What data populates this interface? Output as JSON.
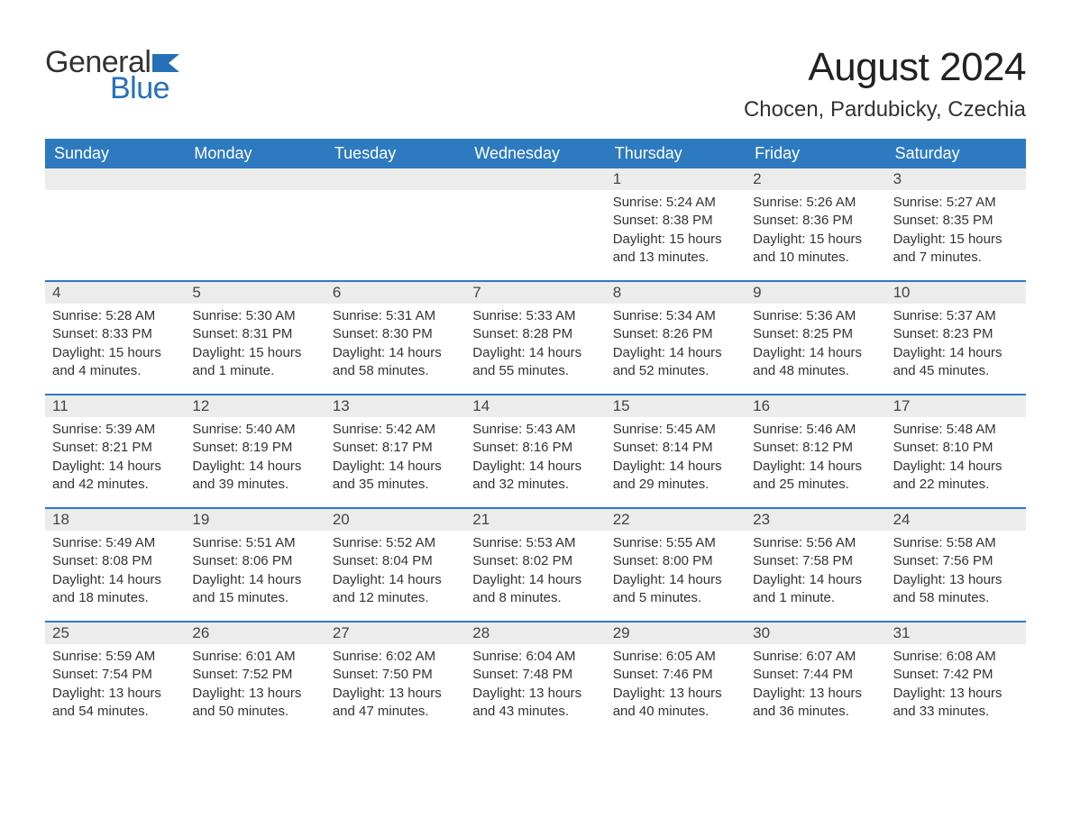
{
  "logo": {
    "text1": "General",
    "text2": "Blue"
  },
  "title": "August 2024",
  "location": "Chocen, Pardubicky, Czechia",
  "colors": {
    "header_bg": "#2d7ac0",
    "header_text": "#ffffff",
    "daynum_bg": "#ececec",
    "text": "#333333",
    "logo_blue": "#2471b8",
    "page_bg": "#ffffff",
    "week_border": "#2d7ac0"
  },
  "weekdays": [
    "Sunday",
    "Monday",
    "Tuesday",
    "Wednesday",
    "Thursday",
    "Friday",
    "Saturday"
  ],
  "weeks": [
    [
      null,
      null,
      null,
      null,
      {
        "n": "1",
        "sunrise": "Sunrise: 5:24 AM",
        "sunset": "Sunset: 8:38 PM",
        "daylight": "Daylight: 15 hours and 13 minutes."
      },
      {
        "n": "2",
        "sunrise": "Sunrise: 5:26 AM",
        "sunset": "Sunset: 8:36 PM",
        "daylight": "Daylight: 15 hours and 10 minutes."
      },
      {
        "n": "3",
        "sunrise": "Sunrise: 5:27 AM",
        "sunset": "Sunset: 8:35 PM",
        "daylight": "Daylight: 15 hours and 7 minutes."
      }
    ],
    [
      {
        "n": "4",
        "sunrise": "Sunrise: 5:28 AM",
        "sunset": "Sunset: 8:33 PM",
        "daylight": "Daylight: 15 hours and 4 minutes."
      },
      {
        "n": "5",
        "sunrise": "Sunrise: 5:30 AM",
        "sunset": "Sunset: 8:31 PM",
        "daylight": "Daylight: 15 hours and 1 minute."
      },
      {
        "n": "6",
        "sunrise": "Sunrise: 5:31 AM",
        "sunset": "Sunset: 8:30 PM",
        "daylight": "Daylight: 14 hours and 58 minutes."
      },
      {
        "n": "7",
        "sunrise": "Sunrise: 5:33 AM",
        "sunset": "Sunset: 8:28 PM",
        "daylight": "Daylight: 14 hours and 55 minutes."
      },
      {
        "n": "8",
        "sunrise": "Sunrise: 5:34 AM",
        "sunset": "Sunset: 8:26 PM",
        "daylight": "Daylight: 14 hours and 52 minutes."
      },
      {
        "n": "9",
        "sunrise": "Sunrise: 5:36 AM",
        "sunset": "Sunset: 8:25 PM",
        "daylight": "Daylight: 14 hours and 48 minutes."
      },
      {
        "n": "10",
        "sunrise": "Sunrise: 5:37 AM",
        "sunset": "Sunset: 8:23 PM",
        "daylight": "Daylight: 14 hours and 45 minutes."
      }
    ],
    [
      {
        "n": "11",
        "sunrise": "Sunrise: 5:39 AM",
        "sunset": "Sunset: 8:21 PM",
        "daylight": "Daylight: 14 hours and 42 minutes."
      },
      {
        "n": "12",
        "sunrise": "Sunrise: 5:40 AM",
        "sunset": "Sunset: 8:19 PM",
        "daylight": "Daylight: 14 hours and 39 minutes."
      },
      {
        "n": "13",
        "sunrise": "Sunrise: 5:42 AM",
        "sunset": "Sunset: 8:17 PM",
        "daylight": "Daylight: 14 hours and 35 minutes."
      },
      {
        "n": "14",
        "sunrise": "Sunrise: 5:43 AM",
        "sunset": "Sunset: 8:16 PM",
        "daylight": "Daylight: 14 hours and 32 minutes."
      },
      {
        "n": "15",
        "sunrise": "Sunrise: 5:45 AM",
        "sunset": "Sunset: 8:14 PM",
        "daylight": "Daylight: 14 hours and 29 minutes."
      },
      {
        "n": "16",
        "sunrise": "Sunrise: 5:46 AM",
        "sunset": "Sunset: 8:12 PM",
        "daylight": "Daylight: 14 hours and 25 minutes."
      },
      {
        "n": "17",
        "sunrise": "Sunrise: 5:48 AM",
        "sunset": "Sunset: 8:10 PM",
        "daylight": "Daylight: 14 hours and 22 minutes."
      }
    ],
    [
      {
        "n": "18",
        "sunrise": "Sunrise: 5:49 AM",
        "sunset": "Sunset: 8:08 PM",
        "daylight": "Daylight: 14 hours and 18 minutes."
      },
      {
        "n": "19",
        "sunrise": "Sunrise: 5:51 AM",
        "sunset": "Sunset: 8:06 PM",
        "daylight": "Daylight: 14 hours and 15 minutes."
      },
      {
        "n": "20",
        "sunrise": "Sunrise: 5:52 AM",
        "sunset": "Sunset: 8:04 PM",
        "daylight": "Daylight: 14 hours and 12 minutes."
      },
      {
        "n": "21",
        "sunrise": "Sunrise: 5:53 AM",
        "sunset": "Sunset: 8:02 PM",
        "daylight": "Daylight: 14 hours and 8 minutes."
      },
      {
        "n": "22",
        "sunrise": "Sunrise: 5:55 AM",
        "sunset": "Sunset: 8:00 PM",
        "daylight": "Daylight: 14 hours and 5 minutes."
      },
      {
        "n": "23",
        "sunrise": "Sunrise: 5:56 AM",
        "sunset": "Sunset: 7:58 PM",
        "daylight": "Daylight: 14 hours and 1 minute."
      },
      {
        "n": "24",
        "sunrise": "Sunrise: 5:58 AM",
        "sunset": "Sunset: 7:56 PM",
        "daylight": "Daylight: 13 hours and 58 minutes."
      }
    ],
    [
      {
        "n": "25",
        "sunrise": "Sunrise: 5:59 AM",
        "sunset": "Sunset: 7:54 PM",
        "daylight": "Daylight: 13 hours and 54 minutes."
      },
      {
        "n": "26",
        "sunrise": "Sunrise: 6:01 AM",
        "sunset": "Sunset: 7:52 PM",
        "daylight": "Daylight: 13 hours and 50 minutes."
      },
      {
        "n": "27",
        "sunrise": "Sunrise: 6:02 AM",
        "sunset": "Sunset: 7:50 PM",
        "daylight": "Daylight: 13 hours and 47 minutes."
      },
      {
        "n": "28",
        "sunrise": "Sunrise: 6:04 AM",
        "sunset": "Sunset: 7:48 PM",
        "daylight": "Daylight: 13 hours and 43 minutes."
      },
      {
        "n": "29",
        "sunrise": "Sunrise: 6:05 AM",
        "sunset": "Sunset: 7:46 PM",
        "daylight": "Daylight: 13 hours and 40 minutes."
      },
      {
        "n": "30",
        "sunrise": "Sunrise: 6:07 AM",
        "sunset": "Sunset: 7:44 PM",
        "daylight": "Daylight: 13 hours and 36 minutes."
      },
      {
        "n": "31",
        "sunrise": "Sunrise: 6:08 AM",
        "sunset": "Sunset: 7:42 PM",
        "daylight": "Daylight: 13 hours and 33 minutes."
      }
    ]
  ]
}
